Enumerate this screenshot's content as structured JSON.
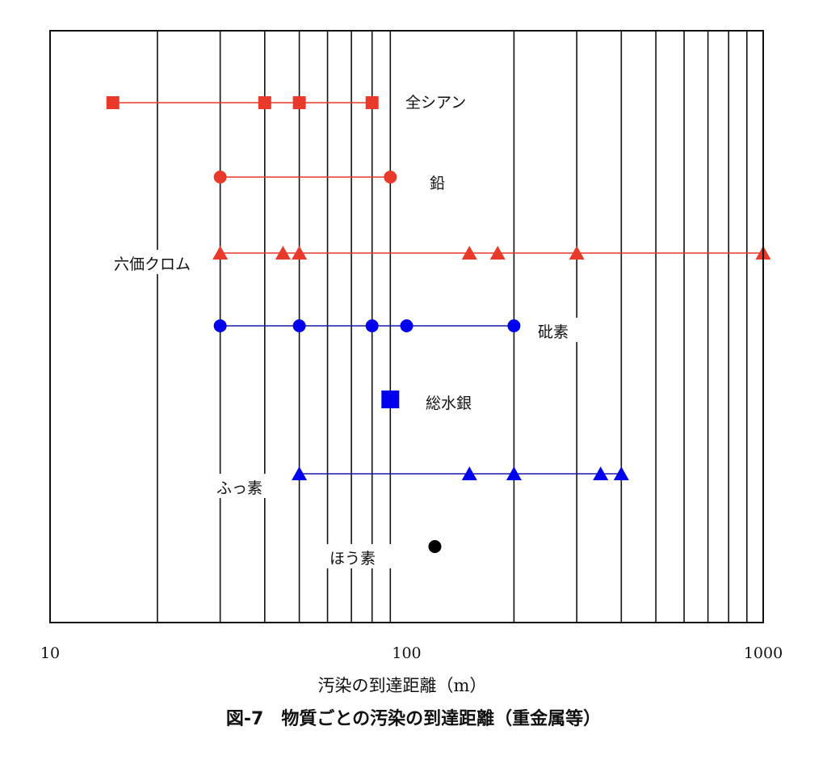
{
  "chart_data": {
    "type": "scatter",
    "title": "図-7　物質ごとの汚染の到達距離（重金属等）",
    "xlabel": "汚染の到達距離（m）",
    "xscale": "log",
    "xlim": [
      10,
      1000
    ],
    "xticks": [
      {
        "value": 10,
        "label": "10"
      },
      {
        "value": 100,
        "label": "100"
      },
      {
        "value": 1000,
        "label": "1000"
      }
    ],
    "grid": true,
    "series": [
      {
        "name": "全シアン",
        "marker": "square",
        "color": "#e8392a",
        "connected": true,
        "values": [
          15,
          40,
          50,
          80
        ]
      },
      {
        "name": "鉛",
        "marker": "circle",
        "color": "#e8392a",
        "connected": true,
        "values": [
          30,
          90
        ]
      },
      {
        "name": "六価クロム",
        "marker": "triangle",
        "color": "#e8392a",
        "connected": true,
        "values": [
          30,
          45,
          50,
          150,
          180,
          300,
          1000
        ]
      },
      {
        "name": "砒素",
        "marker": "circle",
        "color": "#0000ee",
        "connected": true,
        "values": [
          30,
          50,
          80,
          100,
          200
        ]
      },
      {
        "name": "総水銀",
        "marker": "square",
        "color": "#0000ee",
        "connected": false,
        "values": [
          90
        ]
      },
      {
        "name": "ふっ素",
        "marker": "triangle",
        "color": "#0000ee",
        "connected": true,
        "values": [
          50,
          150,
          200,
          350,
          400
        ]
      },
      {
        "name": "ほう素",
        "marker": "circle",
        "color": "#000000",
        "connected": false,
        "values": [
          120
        ]
      }
    ]
  }
}
